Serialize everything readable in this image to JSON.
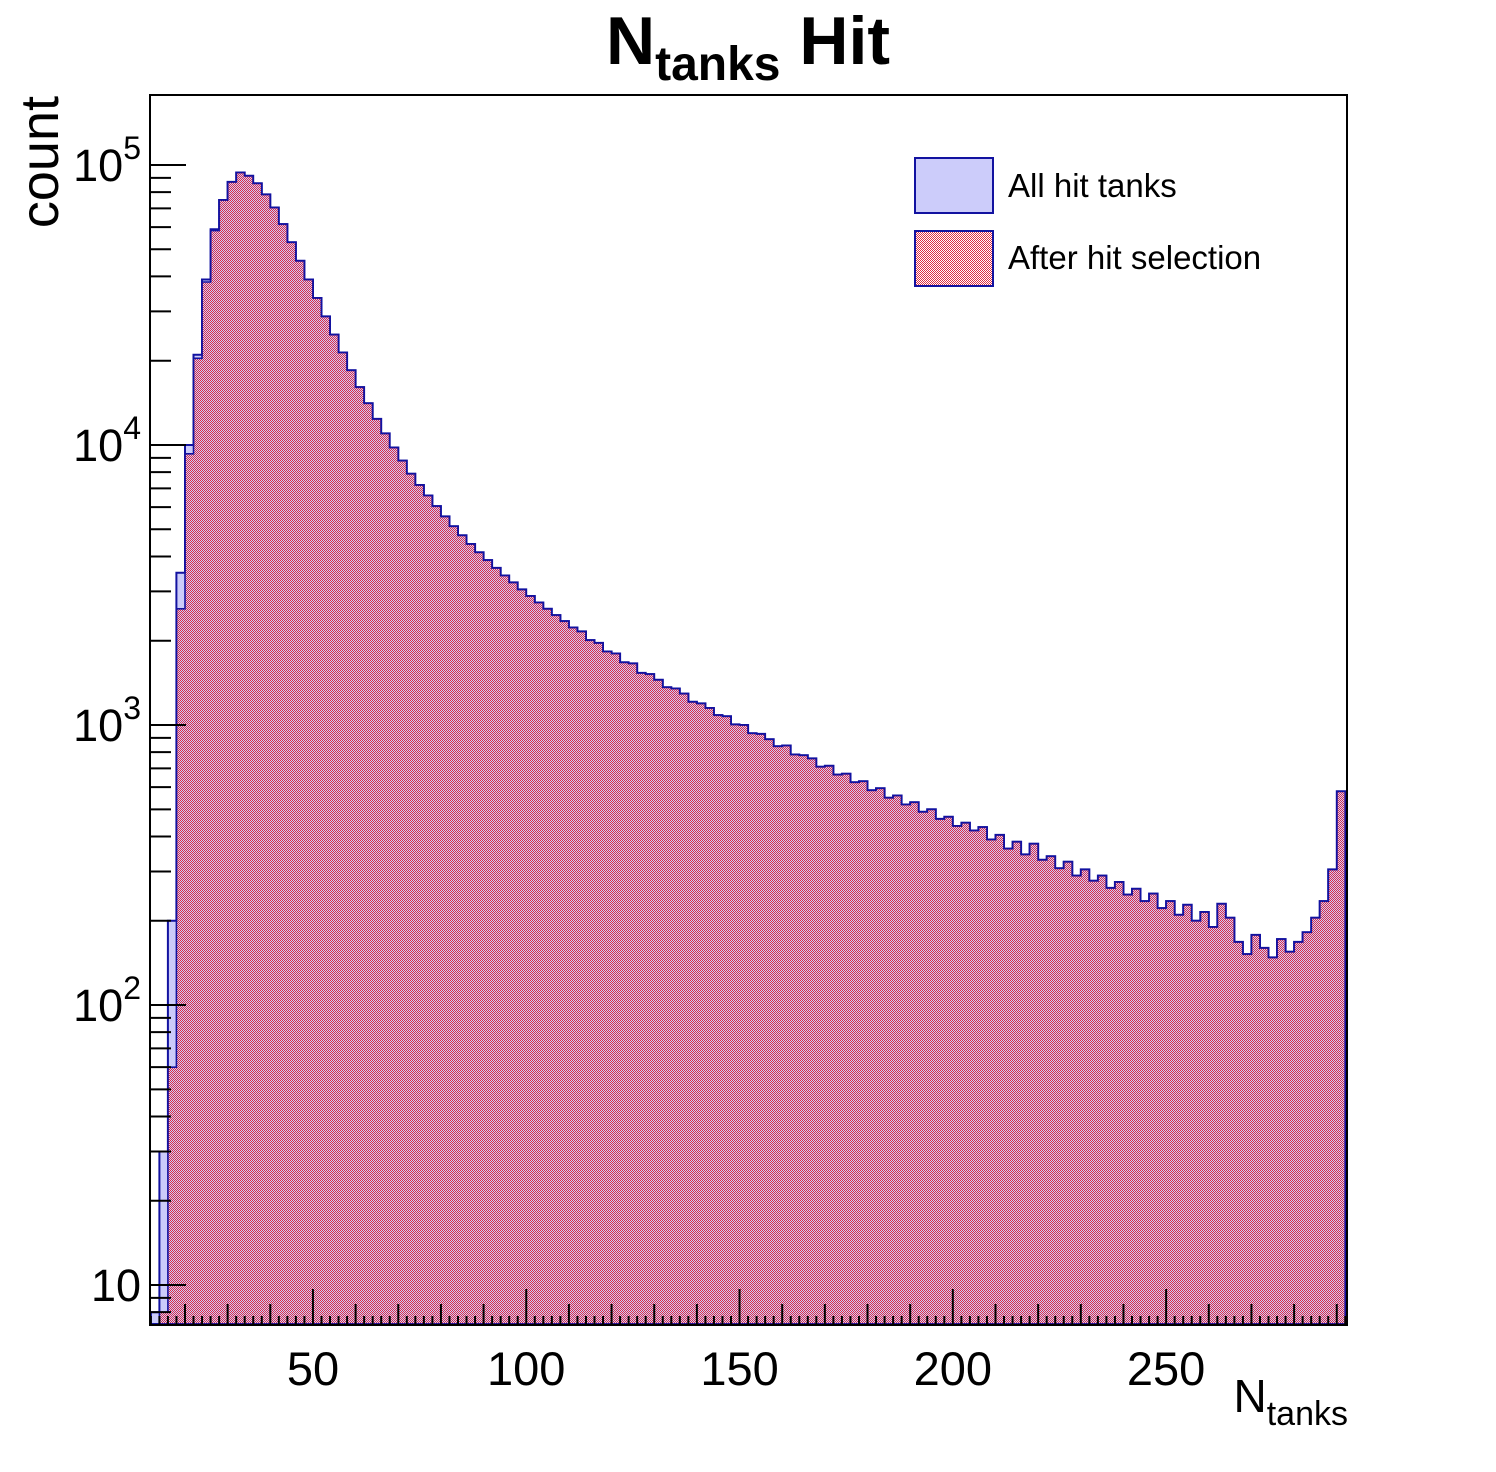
{
  "title": {
    "prefix": "N",
    "subscript": "tanks",
    "suffix": " Hit"
  },
  "y_axis": {
    "label": "count",
    "tick_exponents": [
      1,
      2,
      3,
      4,
      5
    ],
    "scale": "log"
  },
  "x_axis": {
    "label_prefix": "N",
    "label_subscript": "tanks",
    "major_ticks": [
      50,
      100,
      150,
      200,
      250
    ],
    "minor_tick_step": 10,
    "micro_tick_step": 2
  },
  "legend": {
    "entries": [
      {
        "label": "All hit tanks",
        "swatch": "solid-lavender"
      },
      {
        "label": "After hit selection",
        "swatch": "red-checker"
      }
    ]
  },
  "colors": {
    "lavender_fill": "#ccccfa",
    "checker_red": "#de2d45",
    "hist_line": "#1212a0",
    "frame": "#000000",
    "text": "#000000"
  },
  "chart_data": {
    "type": "bar",
    "subtype": "overlaid-step-histograms",
    "title": "N_tanks Hit",
    "xlabel": "N_tanks",
    "ylabel": "count",
    "yscale": "log",
    "xlim": [
      11.8,
      292.4
    ],
    "ylim": [
      7.2,
      177828
    ],
    "bin_start": 12,
    "bin_width": 2,
    "series": [
      {
        "name": "All hit tanks",
        "style": "solid-lavender",
        "values": [
          8,
          30,
          200,
          3500,
          10000,
          21000,
          39000,
          59000,
          75000,
          87000,
          94000,
          91500,
          86000,
          78500,
          70500,
          61500,
          53000,
          45500,
          39000,
          33500,
          28800,
          24800,
          21400,
          18500,
          16100,
          14100,
          12400,
          11000,
          9800,
          8800,
          7900,
          7200,
          6600,
          6050,
          5560,
          5130,
          4760,
          4430,
          4140,
          3880,
          3640,
          3420,
          3230,
          3050,
          2890,
          2740,
          2600,
          2470,
          2350,
          2230,
          2160,
          2010,
          1965,
          1830,
          1800,
          1675,
          1660,
          1535,
          1520,
          1450,
          1365,
          1350,
          1295,
          1210,
          1195,
          1150,
          1085,
          1075,
          1005,
          1000,
          935,
          930,
          890,
          840,
          845,
          785,
          780,
          760,
          710,
          715,
          665,
          670,
          625,
          630,
          585,
          595,
          550,
          560,
          520,
          530,
          490,
          500,
          462,
          470,
          436,
          448,
          420,
          432,
          390,
          405,
          362,
          383,
          345,
          377,
          330,
          340,
          308,
          325,
          290,
          305,
          278,
          290,
          262,
          275,
          248,
          260,
          235,
          250,
          222,
          235,
          210,
          228,
          200,
          215,
          190,
          230,
          205,
          168,
          152,
          178,
          160,
          148,
          172,
          155,
          168,
          182,
          205,
          235,
          305,
          580
        ]
      },
      {
        "name": "After hit selection",
        "style": "red-checker",
        "values": [
          0,
          8,
          60,
          2600,
          9300,
          20400,
          38200,
          58300,
          75000,
          87000,
          94000,
          91500,
          86000,
          78500,
          70500,
          61500,
          53000,
          45500,
          39000,
          33500,
          28800,
          24800,
          21400,
          18500,
          16100,
          14100,
          12400,
          11000,
          9800,
          8800,
          7900,
          7200,
          6600,
          6050,
          5560,
          5130,
          4760,
          4430,
          4140,
          3880,
          3640,
          3420,
          3230,
          3050,
          2890,
          2740,
          2600,
          2470,
          2350,
          2230,
          2160,
          2010,
          1965,
          1830,
          1800,
          1675,
          1660,
          1535,
          1520,
          1450,
          1365,
          1350,
          1295,
          1210,
          1195,
          1150,
          1085,
          1075,
          1005,
          1000,
          935,
          930,
          890,
          840,
          845,
          785,
          780,
          760,
          710,
          715,
          665,
          670,
          625,
          630,
          585,
          595,
          550,
          560,
          520,
          530,
          490,
          500,
          462,
          470,
          436,
          448,
          420,
          432,
          390,
          405,
          362,
          383,
          345,
          377,
          330,
          340,
          308,
          325,
          290,
          305,
          278,
          290,
          262,
          275,
          248,
          260,
          235,
          250,
          222,
          235,
          210,
          228,
          200,
          215,
          190,
          230,
          205,
          168,
          152,
          178,
          160,
          148,
          172,
          155,
          168,
          182,
          205,
          235,
          305,
          580
        ]
      }
    ],
    "legend_position": "top-right",
    "grid": false
  }
}
